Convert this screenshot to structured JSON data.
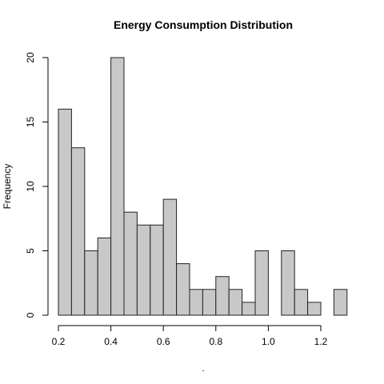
{
  "chart_data": {
    "type": "bar",
    "title": "Energy Consumption Distribution",
    "xlabel": ".",
    "ylabel": "Frequency",
    "bin_width": 0.05,
    "bins": [
      [
        0.2,
        0.25
      ],
      [
        0.25,
        0.3
      ],
      [
        0.3,
        0.35
      ],
      [
        0.35,
        0.4
      ],
      [
        0.4,
        0.45
      ],
      [
        0.45,
        0.5
      ],
      [
        0.5,
        0.55
      ],
      [
        0.55,
        0.6
      ],
      [
        0.6,
        0.65
      ],
      [
        0.65,
        0.7
      ],
      [
        0.7,
        0.75
      ],
      [
        0.75,
        0.8
      ],
      [
        0.8,
        0.85
      ],
      [
        0.85,
        0.9
      ],
      [
        0.9,
        0.95
      ],
      [
        0.95,
        1.0
      ],
      [
        1.0,
        1.05
      ],
      [
        1.05,
        1.1
      ],
      [
        1.1,
        1.15
      ],
      [
        1.15,
        1.2
      ],
      [
        1.2,
        1.25
      ],
      [
        1.25,
        1.3
      ]
    ],
    "values": [
      16,
      13,
      5,
      6,
      20,
      8,
      7,
      7,
      9,
      4,
      2,
      2,
      3,
      2,
      1,
      5,
      0,
      5,
      2,
      1,
      0,
      2
    ],
    "xlim": [
      0.2,
      1.2
    ],
    "ylim": [
      0,
      20
    ],
    "x_ticks": [
      {
        "value": 0.2,
        "label": "0.2"
      },
      {
        "value": 0.4,
        "label": "0.4"
      },
      {
        "value": 0.6,
        "label": "0.6"
      },
      {
        "value": 0.8,
        "label": "0.8"
      },
      {
        "value": 1.0,
        "label": "1.0"
      },
      {
        "value": 1.2,
        "label": "1.2"
      }
    ],
    "y_ticks": [
      {
        "value": 0,
        "label": "0"
      },
      {
        "value": 5,
        "label": "5"
      },
      {
        "value": 10,
        "label": "10"
      },
      {
        "value": 15,
        "label": "15"
      },
      {
        "value": 20,
        "label": "20"
      }
    ],
    "grid": false,
    "colors": {
      "bar_fill": "#c8c8c8",
      "bar_edge": "#222222"
    }
  }
}
